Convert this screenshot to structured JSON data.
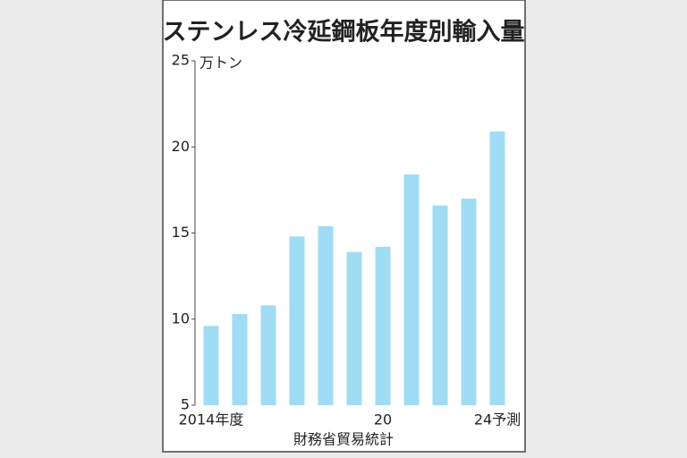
{
  "chart_data": {
    "type": "bar",
    "title": "ステンレス冷延鋼板年度別輸入量",
    "y_unit": "万トン",
    "source": "財務省貿易統計",
    "categories": [
      "2014年度",
      null,
      null,
      null,
      null,
      null,
      "20",
      null,
      null,
      null,
      "24予測"
    ],
    "values": [
      9.6,
      10.3,
      10.8,
      14.8,
      15.4,
      13.9,
      14.2,
      18.4,
      16.6,
      17.0,
      20.9
    ],
    "color": "#a0dcf3",
    "ylim": [
      5,
      25
    ],
    "yticks": [
      5,
      10,
      15,
      20,
      25
    ],
    "grid": false
  }
}
